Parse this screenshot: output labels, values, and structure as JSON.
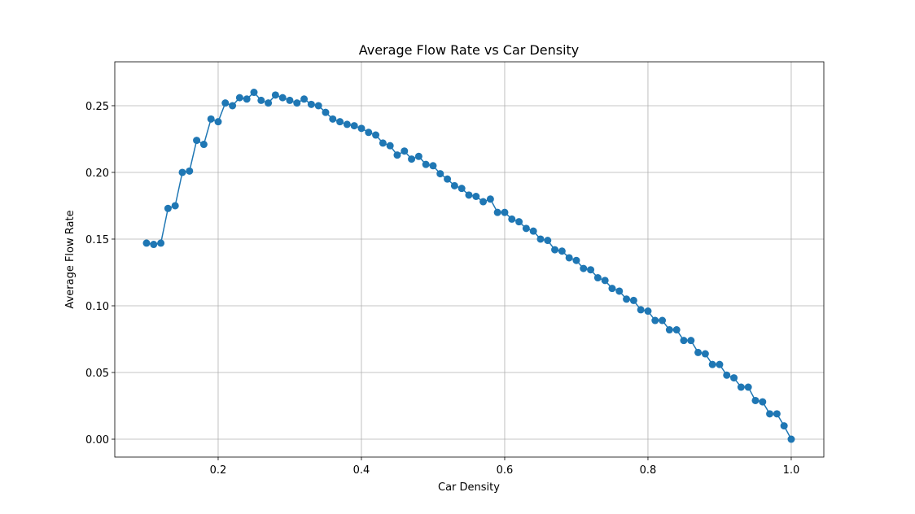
{
  "chart_data": {
    "type": "line",
    "title": "Average Flow Rate vs Car Density",
    "x_label": "Car Density",
    "y_label": "Average Flow Rate",
    "x": [
      0.1,
      0.11,
      0.12,
      0.13,
      0.14,
      0.15,
      0.16,
      0.17,
      0.18,
      0.19,
      0.2,
      0.21,
      0.22,
      0.23,
      0.24,
      0.25,
      0.26,
      0.27,
      0.28,
      0.29,
      0.3,
      0.31,
      0.32,
      0.33,
      0.34,
      0.35,
      0.36,
      0.37,
      0.38,
      0.39,
      0.4,
      0.41,
      0.42,
      0.43,
      0.44,
      0.45,
      0.46,
      0.47,
      0.48,
      0.49,
      0.5,
      0.51,
      0.52,
      0.53,
      0.54,
      0.55,
      0.56,
      0.57,
      0.58,
      0.59,
      0.6,
      0.61,
      0.62,
      0.63,
      0.64,
      0.65,
      0.66,
      0.67,
      0.68,
      0.69,
      0.7,
      0.71,
      0.72,
      0.73,
      0.74,
      0.75,
      0.76,
      0.77,
      0.78,
      0.79,
      0.8,
      0.81,
      0.82,
      0.83,
      0.84,
      0.85,
      0.86,
      0.87,
      0.88,
      0.89,
      0.9,
      0.91,
      0.92,
      0.93,
      0.94,
      0.95,
      0.96,
      0.97,
      0.98,
      0.99,
      1.0
    ],
    "series": [
      {
        "color": "#1f77b4",
        "values": [
          0.147,
          0.146,
          0.147,
          0.173,
          0.175,
          0.2,
          0.201,
          0.224,
          0.221,
          0.24,
          0.238,
          0.252,
          0.25,
          0.256,
          0.255,
          0.26,
          0.254,
          0.252,
          0.258,
          0.256,
          0.254,
          0.252,
          0.255,
          0.251,
          0.25,
          0.245,
          0.24,
          0.238,
          0.236,
          0.235,
          0.233,
          0.23,
          0.228,
          0.222,
          0.22,
          0.213,
          0.216,
          0.21,
          0.212,
          0.206,
          0.205,
          0.199,
          0.195,
          0.19,
          0.188,
          0.183,
          0.182,
          0.178,
          0.18,
          0.17,
          0.17,
          0.165,
          0.163,
          0.158,
          0.156,
          0.15,
          0.149,
          0.142,
          0.141,
          0.136,
          0.134,
          0.128,
          0.127,
          0.121,
          0.119,
          0.113,
          0.111,
          0.105,
          0.104,
          0.097,
          0.096,
          0.089,
          0.089,
          0.082,
          0.082,
          0.074,
          0.074,
          0.065,
          0.064,
          0.056,
          0.056,
          0.048,
          0.046,
          0.039,
          0.039,
          0.029,
          0.028,
          0.019,
          0.019,
          0.01,
          0.0
        ]
      }
    ],
    "xlim": [
      0.0557,
      1.0455
    ],
    "ylim": [
      -0.0134,
      0.2829
    ],
    "xticks": [
      0.2,
      0.4,
      0.6,
      0.8,
      {
        "value": 1,
        "label": "1.0"
      }
    ],
    "yticks": [
      {
        "value": 0,
        "label": "0.00"
      },
      {
        "value": 0.05,
        "label": "0.05"
      },
      {
        "value": 0.1,
        "label": "0.10"
      },
      {
        "value": 0.15,
        "label": "0.15"
      },
      {
        "value": 0.2,
        "label": "0.20"
      },
      {
        "value": 0.25,
        "label": "0.25"
      }
    ],
    "grid": true
  }
}
